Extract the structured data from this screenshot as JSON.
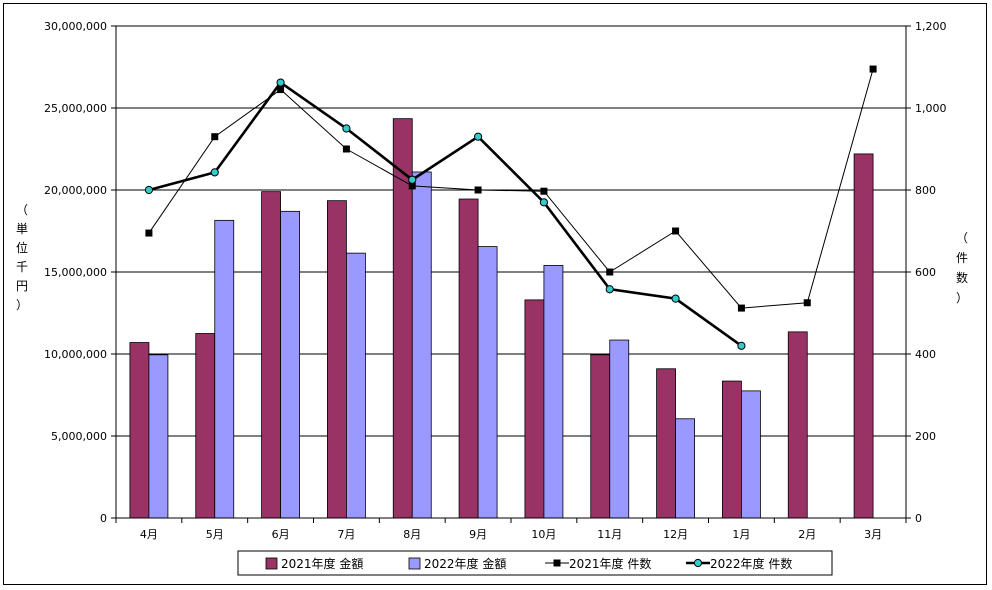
{
  "chart_data": {
    "type": "bar+line",
    "categories": [
      "4月",
      "5月",
      "6月",
      "7月",
      "8月",
      "9月",
      "10月",
      "11月",
      "12月",
      "1月",
      "2月",
      "3月"
    ],
    "y_left": {
      "label_chars": [
        "（",
        "単",
        "位",
        "千",
        "円",
        "）"
      ],
      "ylim": [
        0,
        30000000
      ],
      "ticks": [
        "0",
        "5,000,000",
        "10,000,000",
        "15,000,000",
        "20,000,000",
        "25,000,000",
        "30,000,000"
      ]
    },
    "y_right": {
      "label_chars": [
        "（",
        "件",
        "数",
        "）"
      ],
      "ylim": [
        0,
        1200
      ],
      "ticks": [
        "0",
        "200",
        "400",
        "600",
        "800",
        "1,000",
        "1,200"
      ]
    },
    "bar_series": [
      {
        "name": "2021年度 金額",
        "color": "#993366",
        "values": [
          10700000,
          11250000,
          19900000,
          19350000,
          24350000,
          19450000,
          13300000,
          9950000,
          9100000,
          8350000,
          11350000,
          22200000
        ]
      },
      {
        "name": "2022年度 金額",
        "color": "#9999ff",
        "values": [
          9950000,
          18150000,
          18700000,
          16150000,
          21100000,
          16550000,
          15400000,
          10850000,
          6050000,
          7750000,
          null,
          null
        ]
      }
    ],
    "line_series": [
      {
        "name": "2021年度 件数",
        "color": "#000000",
        "marker": "square",
        "values": [
          695,
          930,
          1045,
          900,
          810,
          800,
          797,
          600,
          700,
          512,
          525,
          1095
        ]
      },
      {
        "name": "2022年度 件数",
        "color": "#000000",
        "marker": "circle",
        "marker_color": "#33cccc",
        "values": [
          800,
          843,
          1062,
          950,
          825,
          930,
          770,
          558,
          535,
          420,
          null,
          null
        ]
      }
    ],
    "grid": true,
    "legend_position": "bottom"
  }
}
